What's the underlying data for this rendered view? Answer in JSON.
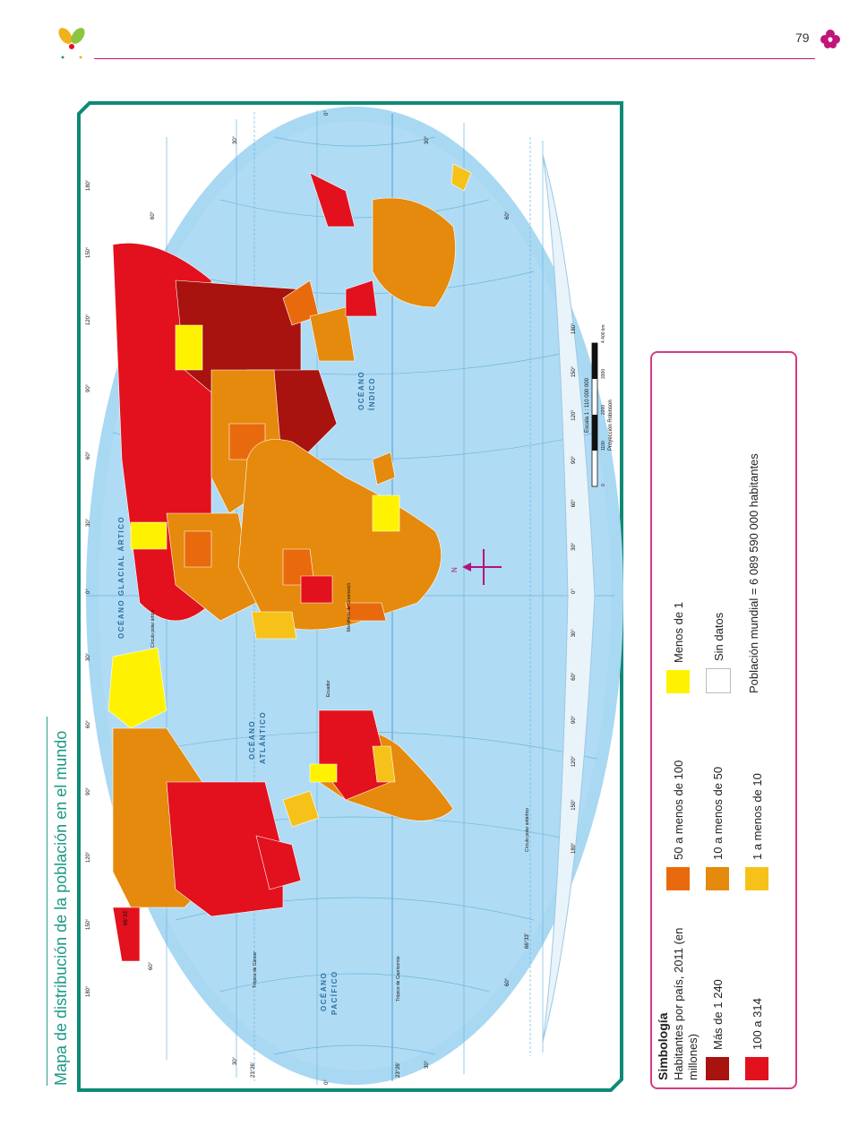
{
  "page": {
    "number": "79"
  },
  "side_title": "Mapa de distribución de la población en el mundo",
  "colors": {
    "ocean": "#a9d8f2",
    "frame": "#0e8a77",
    "accent": "#c0167a",
    "c_mas_1240": "#a8120f",
    "c_100_314": "#e2111d",
    "c_50_100": "#e96a0c",
    "c_10_50": "#e58a0c",
    "c_1_10": "#f6c21a",
    "c_menos_1": "#fff200",
    "c_sin_datos": "#ffffff"
  },
  "map": {
    "oceans": {
      "glacial": "OCÉANO GLACIAL ÁRTICO",
      "atlantico1": "OCÉANO",
      "atlantico2": "ATLÁNTICO",
      "pacifico1": "OCÉANO",
      "pacifico2": "PACÍFICO",
      "indico1": "OCÉANO",
      "indico2": "ÍNDICO"
    },
    "lines": {
      "circulo_polar_artico": "Círculo polar ártico",
      "tropico_cancer": "Trópico de Cáncer",
      "ecuador": "Ecuador",
      "tropico_capricornio": "Trópico de Capricornio",
      "circulo_polar_antartico": "Círculo polar antártico",
      "greenwich": "Meridiano de Greenwich"
    },
    "lat_labels": {
      "left_30": "30°",
      "left_23": "23°26'",
      "left_0": "0°",
      "left_23s": "23°26'",
      "left_30s": "30°",
      "l_60n": "60°",
      "l_60s": "60°",
      "l_66n": "66°33'",
      "l_66s": "66°33'",
      "top_0": "0°",
      "top_30": "30°",
      "top_60": "60°",
      "top_30b": "30°",
      "top_60b": "60°"
    },
    "lon_labels_top": [
      "180°",
      "150°",
      "120°",
      "90°",
      "60°",
      "30°",
      "0°",
      "30°",
      "60°",
      "90°",
      "120°",
      "150°",
      "180°"
    ],
    "lon_labels_bottom": [
      "180°",
      "150°",
      "120°",
      "90°",
      "60°",
      "30°",
      "0°",
      "30°",
      "60°",
      "90°",
      "120°",
      "150°",
      "180°"
    ],
    "compass": "N",
    "scale": {
      "title": "Escala 1 : 110 000 000",
      "ticks": [
        "0",
        "1100",
        "2200",
        "3300",
        "4 400 km"
      ],
      "projection": "Proyección Robinson"
    }
  },
  "legend": {
    "title": "Simbología",
    "subtitle": "Habitantes por país, 2011 (en millones)",
    "items": [
      {
        "label": "Más de 1 240",
        "color": "#a8120f"
      },
      {
        "label": "100 a 314",
        "color": "#e2111d"
      },
      {
        "label": "50 a menos de 100",
        "color": "#e96a0c"
      },
      {
        "label": "10 a menos de 50",
        "color": "#e58a0c"
      },
      {
        "label": "1 a menos de 10",
        "color": "#f6c21a"
      },
      {
        "label": "Menos de 1",
        "color": "#fff200"
      },
      {
        "label": "Sin datos",
        "color": "#ffffff"
      }
    ],
    "total": "Población mundial = 6 089 590 000 habitantes"
  }
}
